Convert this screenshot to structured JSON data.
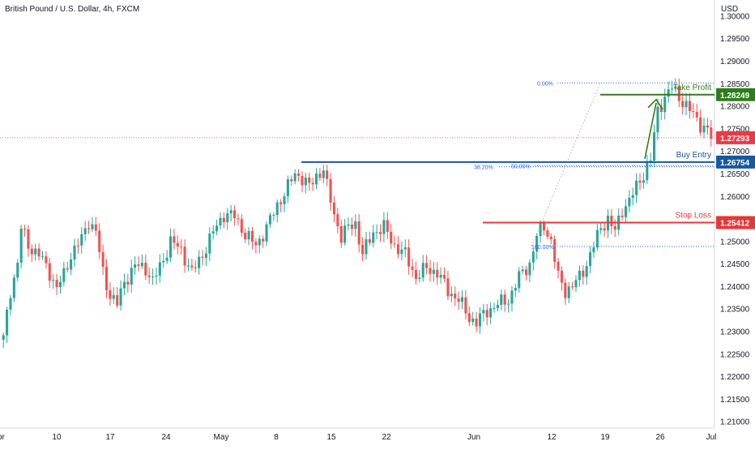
{
  "header": {
    "title": "British Pound / U.S. Dollar, 4h, FXCM"
  },
  "price_axis": {
    "currency": "USD",
    "ticks": [
      "1.30000",
      "1.29500",
      "1.29000",
      "1.28500",
      "1.28000",
      "1.27500",
      "1.27000",
      "1.26500",
      "1.26000",
      "1.25500",
      "1.25000",
      "1.24500",
      "1.24000",
      "1.23500",
      "1.23000",
      "1.22500",
      "1.22000",
      "1.21500",
      "1.21000"
    ],
    "current_price": "1.27293"
  },
  "time_axis": {
    "labels": [
      "Apr",
      "10",
      "17",
      "24",
      "May",
      "8",
      "15",
      "22",
      "Jun",
      "12",
      "19",
      "26",
      "Jul"
    ]
  },
  "levels": {
    "take_profit": {
      "label": "Take Profit",
      "price": "1.28249",
      "color": "#2e7d1b"
    },
    "buy_entry": {
      "label": "Buy Entry",
      "price": "1.26754",
      "color": "#1559a0"
    },
    "stop_loss": {
      "label": "Stop Loss",
      "price": "1.25412",
      "color": "#e53935"
    }
  },
  "fib": [
    {
      "label": "0.00%",
      "price": 1.2851
    },
    {
      "label": "38.20%",
      "price": 1.2665
    },
    {
      "label": "50.00%",
      "price": 1.2667
    },
    {
      "label": "100.00%",
      "price": 1.2488
    }
  ],
  "colors": {
    "up": "#26a69a",
    "down": "#ef5350",
    "current": "#f23645"
  },
  "chart_data": {
    "type": "candlestick",
    "ylim": [
      1.2085,
      1.3035
    ],
    "ohlc_anchors": [
      [
        0,
        1.2283
      ],
      [
        2,
        1.239
      ],
      [
        4,
        1.245
      ],
      [
        5,
        1.253
      ],
      [
        7,
        1.249
      ],
      [
        10,
        1.247
      ],
      [
        13,
        1.243
      ],
      [
        15,
        1.2395
      ],
      [
        17,
        1.2425
      ],
      [
        19,
        1.247
      ],
      [
        22,
        1.2505
      ],
      [
        24,
        1.2545
      ],
      [
        26,
        1.252
      ],
      [
        28,
        1.243
      ],
      [
        30,
        1.238
      ],
      [
        32,
        1.236
      ],
      [
        34,
        1.241
      ],
      [
        37,
        1.2445
      ],
      [
        40,
        1.244
      ],
      [
        42,
        1.241
      ],
      [
        45,
        1.246
      ],
      [
        47,
        1.25
      ],
      [
        50,
        1.248
      ],
      [
        53,
        1.243
      ],
      [
        56,
        1.247
      ],
      [
        59,
        1.252
      ],
      [
        62,
        1.256
      ],
      [
        65,
        1.2555
      ],
      [
        68,
        1.2515
      ],
      [
        71,
        1.249
      ],
      [
        74,
        1.253
      ],
      [
        77,
        1.258
      ],
      [
        80,
        1.262
      ],
      [
        82,
        1.265
      ],
      [
        84,
        1.264
      ],
      [
        86,
        1.262
      ],
      [
        88,
        1.2645
      ],
      [
        90,
        1.266
      ],
      [
        91,
        1.262
      ],
      [
        93,
        1.256
      ],
      [
        95,
        1.251
      ],
      [
        97,
        1.253
      ],
      [
        99,
        1.254
      ],
      [
        101,
        1.247
      ],
      [
        104,
        1.252
      ],
      [
        107,
        1.253
      ],
      [
        110,
        1.249
      ],
      [
        113,
        1.247
      ],
      [
        116,
        1.242
      ],
      [
        119,
        1.244
      ],
      [
        122,
        1.243
      ],
      [
        125,
        1.239
      ],
      [
        128,
        1.237
      ],
      [
        131,
        1.233
      ],
      [
        133,
        1.232
      ],
      [
        136,
        1.2345
      ],
      [
        139,
        1.236
      ],
      [
        142,
        1.237
      ],
      [
        145,
        1.242
      ],
      [
        148,
        1.245
      ],
      [
        150,
        1.251
      ],
      [
        152,
        1.2535
      ],
      [
        154,
        1.25
      ],
      [
        156,
        1.242
      ],
      [
        158,
        1.239
      ],
      [
        160,
        1.24
      ],
      [
        162,
        1.242
      ],
      [
        164,
        1.245
      ],
      [
        166,
        1.249
      ],
      [
        168,
        1.253
      ],
      [
        170,
        1.255
      ],
      [
        172,
        1.252
      ],
      [
        174,
        1.257
      ],
      [
        176,
        1.259
      ],
      [
        178,
        1.262
      ],
      [
        180,
        1.265
      ],
      [
        182,
        1.268
      ],
      [
        184,
        1.279
      ],
      [
        186,
        1.282
      ],
      [
        188,
        1.284
      ],
      [
        190,
        1.282
      ],
      [
        192,
        1.28
      ],
      [
        194,
        1.278
      ],
      [
        196,
        1.276
      ],
      [
        198,
        1.2745
      ],
      [
        199,
        1.2729
      ]
    ],
    "total_bars": 200
  }
}
